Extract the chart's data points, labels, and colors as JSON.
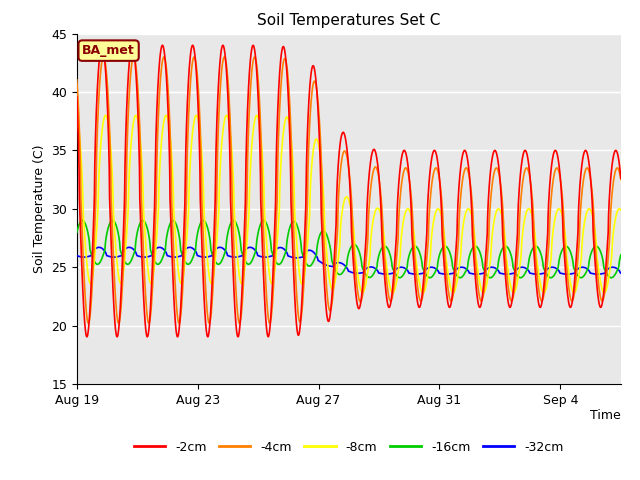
{
  "title": "Soil Temperatures Set C",
  "xlabel": "Time",
  "ylabel": "Soil Temperature (C)",
  "ylim": [
    15,
    45
  ],
  "num_days": 18,
  "label_text": "BA_met",
  "series_order": [
    "-32cm",
    "-16cm",
    "-8cm",
    "-4cm",
    "-2cm"
  ],
  "series": {
    "-2cm": {
      "color": "#ff0000",
      "amp1": 13,
      "amp2": 7,
      "mean1": 31,
      "mean2": 28,
      "phase_lag": 0.0,
      "min_dip": 0.92
    },
    "-4cm": {
      "color": "#ff8000",
      "amp1": 12,
      "amp2": 6,
      "mean1": 31,
      "mean2": 27.5,
      "phase_lag": 0.05,
      "min_dip": 0.9
    },
    "-8cm": {
      "color": "#ffff00",
      "amp1": 8,
      "amp2": 4,
      "mean1": 30,
      "mean2": 26,
      "phase_lag": 0.12,
      "min_dip": 0.8
    },
    "-16cm": {
      "color": "#00cc00",
      "amp1": 2.5,
      "amp2": 1.8,
      "mean1": 26.5,
      "mean2": 25,
      "phase_lag": 0.35,
      "min_dip": 0.5
    },
    "-32cm": {
      "color": "#0000ff",
      "amp1": 0.7,
      "amp2": 0.5,
      "mean1": 26,
      "mean2": 24.5,
      "phase_lag": 0.9,
      "min_dip": 0.2
    }
  },
  "break_day": 8.3,
  "xtick_labels": [
    "Aug 19",
    "Aug 23",
    "Aug 27",
    "Aug 31",
    "Sep 4"
  ],
  "xtick_days": [
    0,
    4,
    8,
    12,
    16
  ],
  "background_color": "#e8e8e8",
  "fig_background": "#ffffff",
  "grid_color": "#ffffff",
  "grid_y": [
    20,
    25,
    30,
    35,
    40
  ]
}
